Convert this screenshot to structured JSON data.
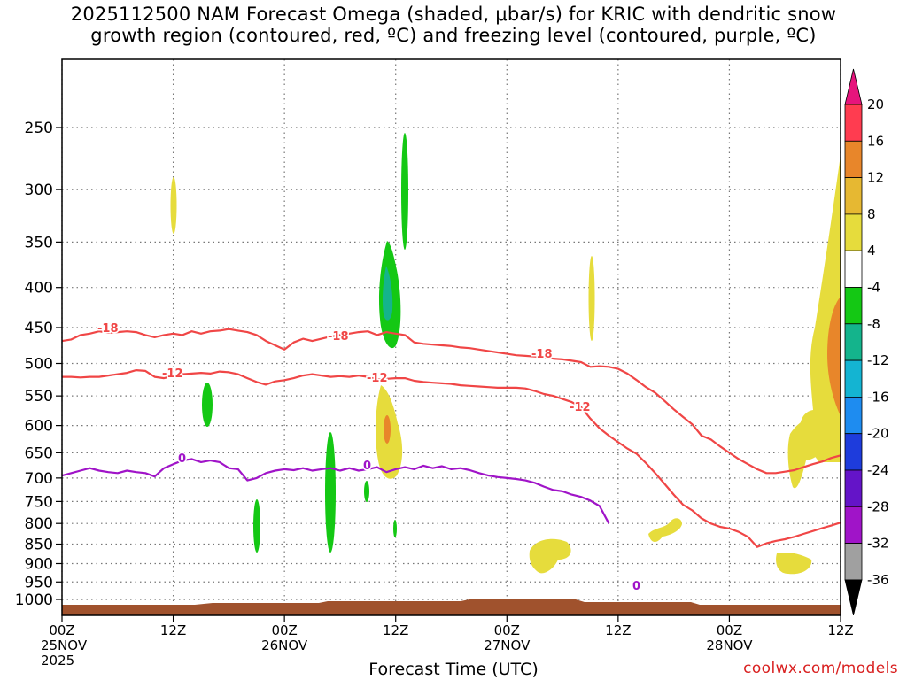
{
  "title": {
    "line1": "2025112500 NAM Forecast Omega (shaded, μbar/s) for KRIC with dendritic snow",
    "line2": "growth region (contoured, red, ºC) and freezing level (contoured, purple, ºC)"
  },
  "credit": "coolwx.com/models",
  "chart_data": {
    "type": "heatmap",
    "title": "2025112500 NAM Forecast Omega (shaded, μbar/s) for KRIC with dendritic snow growth region (contoured, red, ºC) and freezing level (contoured, purple, ºC)",
    "xlabel": "Forecast Time (UTC)",
    "ylabel": "",
    "x_forecast_hours": [
      0,
      84
    ],
    "y_pressure_range_hpa": [
      1030,
      190
    ],
    "y_ticks": [
      "250",
      "300",
      "350",
      "400",
      "450",
      "500",
      "550",
      "600",
      "650",
      "700",
      "750",
      "800",
      "850",
      "900",
      "950",
      "1000"
    ],
    "x_ticks": [
      {
        "hour": 0,
        "lines": [
          "00Z",
          "25NOV",
          "2025"
        ]
      },
      {
        "hour": 12,
        "lines": [
          "12Z"
        ]
      },
      {
        "hour": 24,
        "lines": [
          "00Z",
          "26NOV"
        ]
      },
      {
        "hour": 36,
        "lines": [
          "12Z"
        ]
      },
      {
        "hour": 48,
        "lines": [
          "00Z",
          "27NOV"
        ]
      },
      {
        "hour": 60,
        "lines": [
          "12Z"
        ]
      },
      {
        "hour": 72,
        "lines": [
          "00Z",
          "28NOV"
        ]
      },
      {
        "hour": 84,
        "lines": [
          "12Z"
        ]
      }
    ],
    "colorbar": {
      "labels": [
        "20",
        "16",
        "12",
        "8",
        "4",
        "-4",
        "-8",
        "-12",
        "-16",
        "-20",
        "-24",
        "-28",
        "-32",
        "-36"
      ],
      "colors": [
        "#ff3c50",
        "#e8862a",
        "#e6b832",
        "#e6dc3c",
        "#ffffff",
        "#14c814",
        "#14b48c",
        "#14b4d2",
        "#1e8cf0",
        "#1e3cdc",
        "#6414c8",
        "#a014c8",
        "#a0a0a0"
      ],
      "over_color": "#e6147c",
      "under_color": "#000000"
    },
    "contours": [
      {
        "label": "-18",
        "color": "#f04646",
        "points": [
          [
            0,
            468
          ],
          [
            1,
            466
          ],
          [
            2,
            460
          ],
          [
            3,
            458
          ],
          [
            4,
            455
          ],
          [
            5,
            457
          ],
          [
            6,
            456
          ],
          [
            7,
            455
          ],
          [
            8,
            456
          ],
          [
            9,
            460
          ],
          [
            10,
            463
          ],
          [
            11,
            460
          ],
          [
            12,
            458
          ],
          [
            13,
            460
          ],
          [
            14,
            455
          ],
          [
            15,
            458
          ],
          [
            16,
            455
          ],
          [
            17,
            454
          ],
          [
            18,
            452
          ],
          [
            19,
            454
          ],
          [
            20,
            456
          ],
          [
            21,
            460
          ],
          [
            22,
            468
          ],
          [
            23,
            474
          ],
          [
            24,
            480
          ],
          [
            25,
            470
          ],
          [
            26,
            465
          ],
          [
            27,
            468
          ],
          [
            28,
            465
          ],
          [
            29,
            462
          ],
          [
            30,
            460
          ],
          [
            31,
            458
          ],
          [
            32,
            456
          ],
          [
            33,
            455
          ],
          [
            34,
            460
          ],
          [
            35,
            456
          ],
          [
            36,
            458
          ],
          [
            37,
            460
          ],
          [
            38,
            470
          ],
          [
            39,
            472
          ],
          [
            40,
            473
          ],
          [
            41,
            474
          ],
          [
            42,
            475
          ],
          [
            43,
            477
          ],
          [
            44,
            478
          ],
          [
            45,
            480
          ],
          [
            46,
            482
          ],
          [
            47,
            484
          ],
          [
            48,
            486
          ],
          [
            49,
            488
          ],
          [
            50,
            489
          ],
          [
            51,
            490
          ],
          [
            52,
            491
          ],
          [
            53,
            493
          ],
          [
            54,
            494
          ],
          [
            55,
            496
          ],
          [
            56,
            498
          ],
          [
            57,
            505
          ],
          [
            58,
            504
          ],
          [
            59,
            505
          ],
          [
            60,
            508
          ],
          [
            61,
            515
          ],
          [
            62,
            525
          ],
          [
            63,
            536
          ],
          [
            64,
            545
          ],
          [
            65,
            558
          ],
          [
            66,
            572
          ],
          [
            67,
            585
          ],
          [
            68,
            598
          ],
          [
            69,
            618
          ],
          [
            70,
            625
          ],
          [
            71,
            638
          ],
          [
            72,
            650
          ],
          [
            73,
            662
          ],
          [
            74,
            672
          ],
          [
            75,
            682
          ],
          [
            76,
            690
          ],
          [
            77,
            690
          ],
          [
            78,
            687
          ],
          [
            79,
            684
          ],
          [
            80,
            678
          ],
          [
            81,
            672
          ],
          [
            82,
            667
          ],
          [
            83,
            660
          ],
          [
            84,
            655
          ]
        ]
      },
      {
        "label": "-12",
        "color": "#f04646",
        "points": [
          [
            0,
            520
          ],
          [
            1,
            520
          ],
          [
            2,
            521
          ],
          [
            3,
            520
          ],
          [
            4,
            520
          ],
          [
            5,
            518
          ],
          [
            6,
            516
          ],
          [
            7,
            514
          ],
          [
            8,
            510
          ],
          [
            9,
            511
          ],
          [
            10,
            520
          ],
          [
            11,
            522
          ],
          [
            12,
            519
          ],
          [
            13,
            516
          ],
          [
            14,
            515
          ],
          [
            15,
            514
          ],
          [
            16,
            515
          ],
          [
            17,
            512
          ],
          [
            18,
            513
          ],
          [
            19,
            516
          ],
          [
            20,
            522
          ],
          [
            21,
            528
          ],
          [
            22,
            532
          ],
          [
            23,
            527
          ],
          [
            24,
            525
          ],
          [
            25,
            522
          ],
          [
            26,
            518
          ],
          [
            27,
            516
          ],
          [
            28,
            518
          ],
          [
            29,
            520
          ],
          [
            30,
            519
          ],
          [
            31,
            520
          ],
          [
            32,
            518
          ],
          [
            33,
            520
          ],
          [
            34,
            524
          ],
          [
            35,
            523
          ],
          [
            36,
            522
          ],
          [
            37,
            522
          ],
          [
            38,
            526
          ],
          [
            39,
            528
          ],
          [
            40,
            529
          ],
          [
            41,
            530
          ],
          [
            42,
            531
          ],
          [
            43,
            533
          ],
          [
            44,
            534
          ],
          [
            45,
            535
          ],
          [
            46,
            536
          ],
          [
            47,
            537
          ],
          [
            48,
            537
          ],
          [
            49,
            537
          ],
          [
            50,
            538
          ],
          [
            51,
            542
          ],
          [
            52,
            547
          ],
          [
            53,
            550
          ],
          [
            54,
            555
          ],
          [
            55,
            560
          ],
          [
            56,
            568
          ],
          [
            57,
            588
          ],
          [
            58,
            605
          ],
          [
            59,
            618
          ],
          [
            60,
            630
          ],
          [
            61,
            642
          ],
          [
            62,
            652
          ],
          [
            63,
            670
          ],
          [
            64,
            690
          ],
          [
            65,
            712
          ],
          [
            66,
            735
          ],
          [
            67,
            757
          ],
          [
            68,
            770
          ],
          [
            69,
            788
          ],
          [
            70,
            800
          ],
          [
            71,
            808
          ],
          [
            72,
            812
          ],
          [
            73,
            820
          ],
          [
            74,
            832
          ],
          [
            75,
            857
          ],
          [
            76,
            848
          ],
          [
            77,
            842
          ],
          [
            78,
            838
          ],
          [
            79,
            832
          ],
          [
            80,
            825
          ],
          [
            81,
            818
          ],
          [
            82,
            811
          ],
          [
            83,
            805
          ],
          [
            84,
            798
          ]
        ]
      },
      {
        "label": "0",
        "color": "#a014c8",
        "points": [
          [
            0,
            695
          ],
          [
            1,
            690
          ],
          [
            2,
            685
          ],
          [
            3,
            680
          ],
          [
            4,
            685
          ],
          [
            5,
            688
          ],
          [
            6,
            690
          ],
          [
            7,
            685
          ],
          [
            8,
            688
          ],
          [
            9,
            690
          ],
          [
            10,
            697
          ],
          [
            11,
            680
          ],
          [
            12,
            672
          ],
          [
            13,
            665
          ],
          [
            14,
            662
          ],
          [
            15,
            668
          ],
          [
            16,
            665
          ],
          [
            17,
            668
          ],
          [
            18,
            680
          ],
          [
            19,
            682
          ],
          [
            20,
            705
          ],
          [
            21,
            700
          ],
          [
            22,
            690
          ],
          [
            23,
            685
          ],
          [
            24,
            682
          ],
          [
            25,
            684
          ],
          [
            26,
            680
          ],
          [
            27,
            685
          ],
          [
            28,
            682
          ],
          [
            29,
            680
          ],
          [
            30,
            685
          ],
          [
            31,
            680
          ],
          [
            32,
            685
          ],
          [
            33,
            682
          ],
          [
            34,
            678
          ],
          [
            35,
            688
          ],
          [
            36,
            682
          ],
          [
            37,
            678
          ],
          [
            38,
            682
          ],
          [
            39,
            675
          ],
          [
            40,
            680
          ],
          [
            41,
            676
          ],
          [
            42,
            682
          ],
          [
            43,
            680
          ],
          [
            44,
            684
          ],
          [
            45,
            690
          ],
          [
            46,
            695
          ],
          [
            47,
            698
          ],
          [
            48,
            700
          ],
          [
            49,
            702
          ],
          [
            50,
            705
          ],
          [
            51,
            710
          ],
          [
            52,
            718
          ],
          [
            53,
            725
          ],
          [
            54,
            728
          ],
          [
            55,
            735
          ],
          [
            56,
            740
          ],
          [
            57,
            748
          ],
          [
            58,
            760
          ],
          [
            59,
            800
          ]
        ]
      }
    ],
    "annotations": [
      "-18",
      "-18",
      "-18",
      "-12",
      "-12",
      "-12",
      "0",
      "0",
      "0"
    ]
  }
}
